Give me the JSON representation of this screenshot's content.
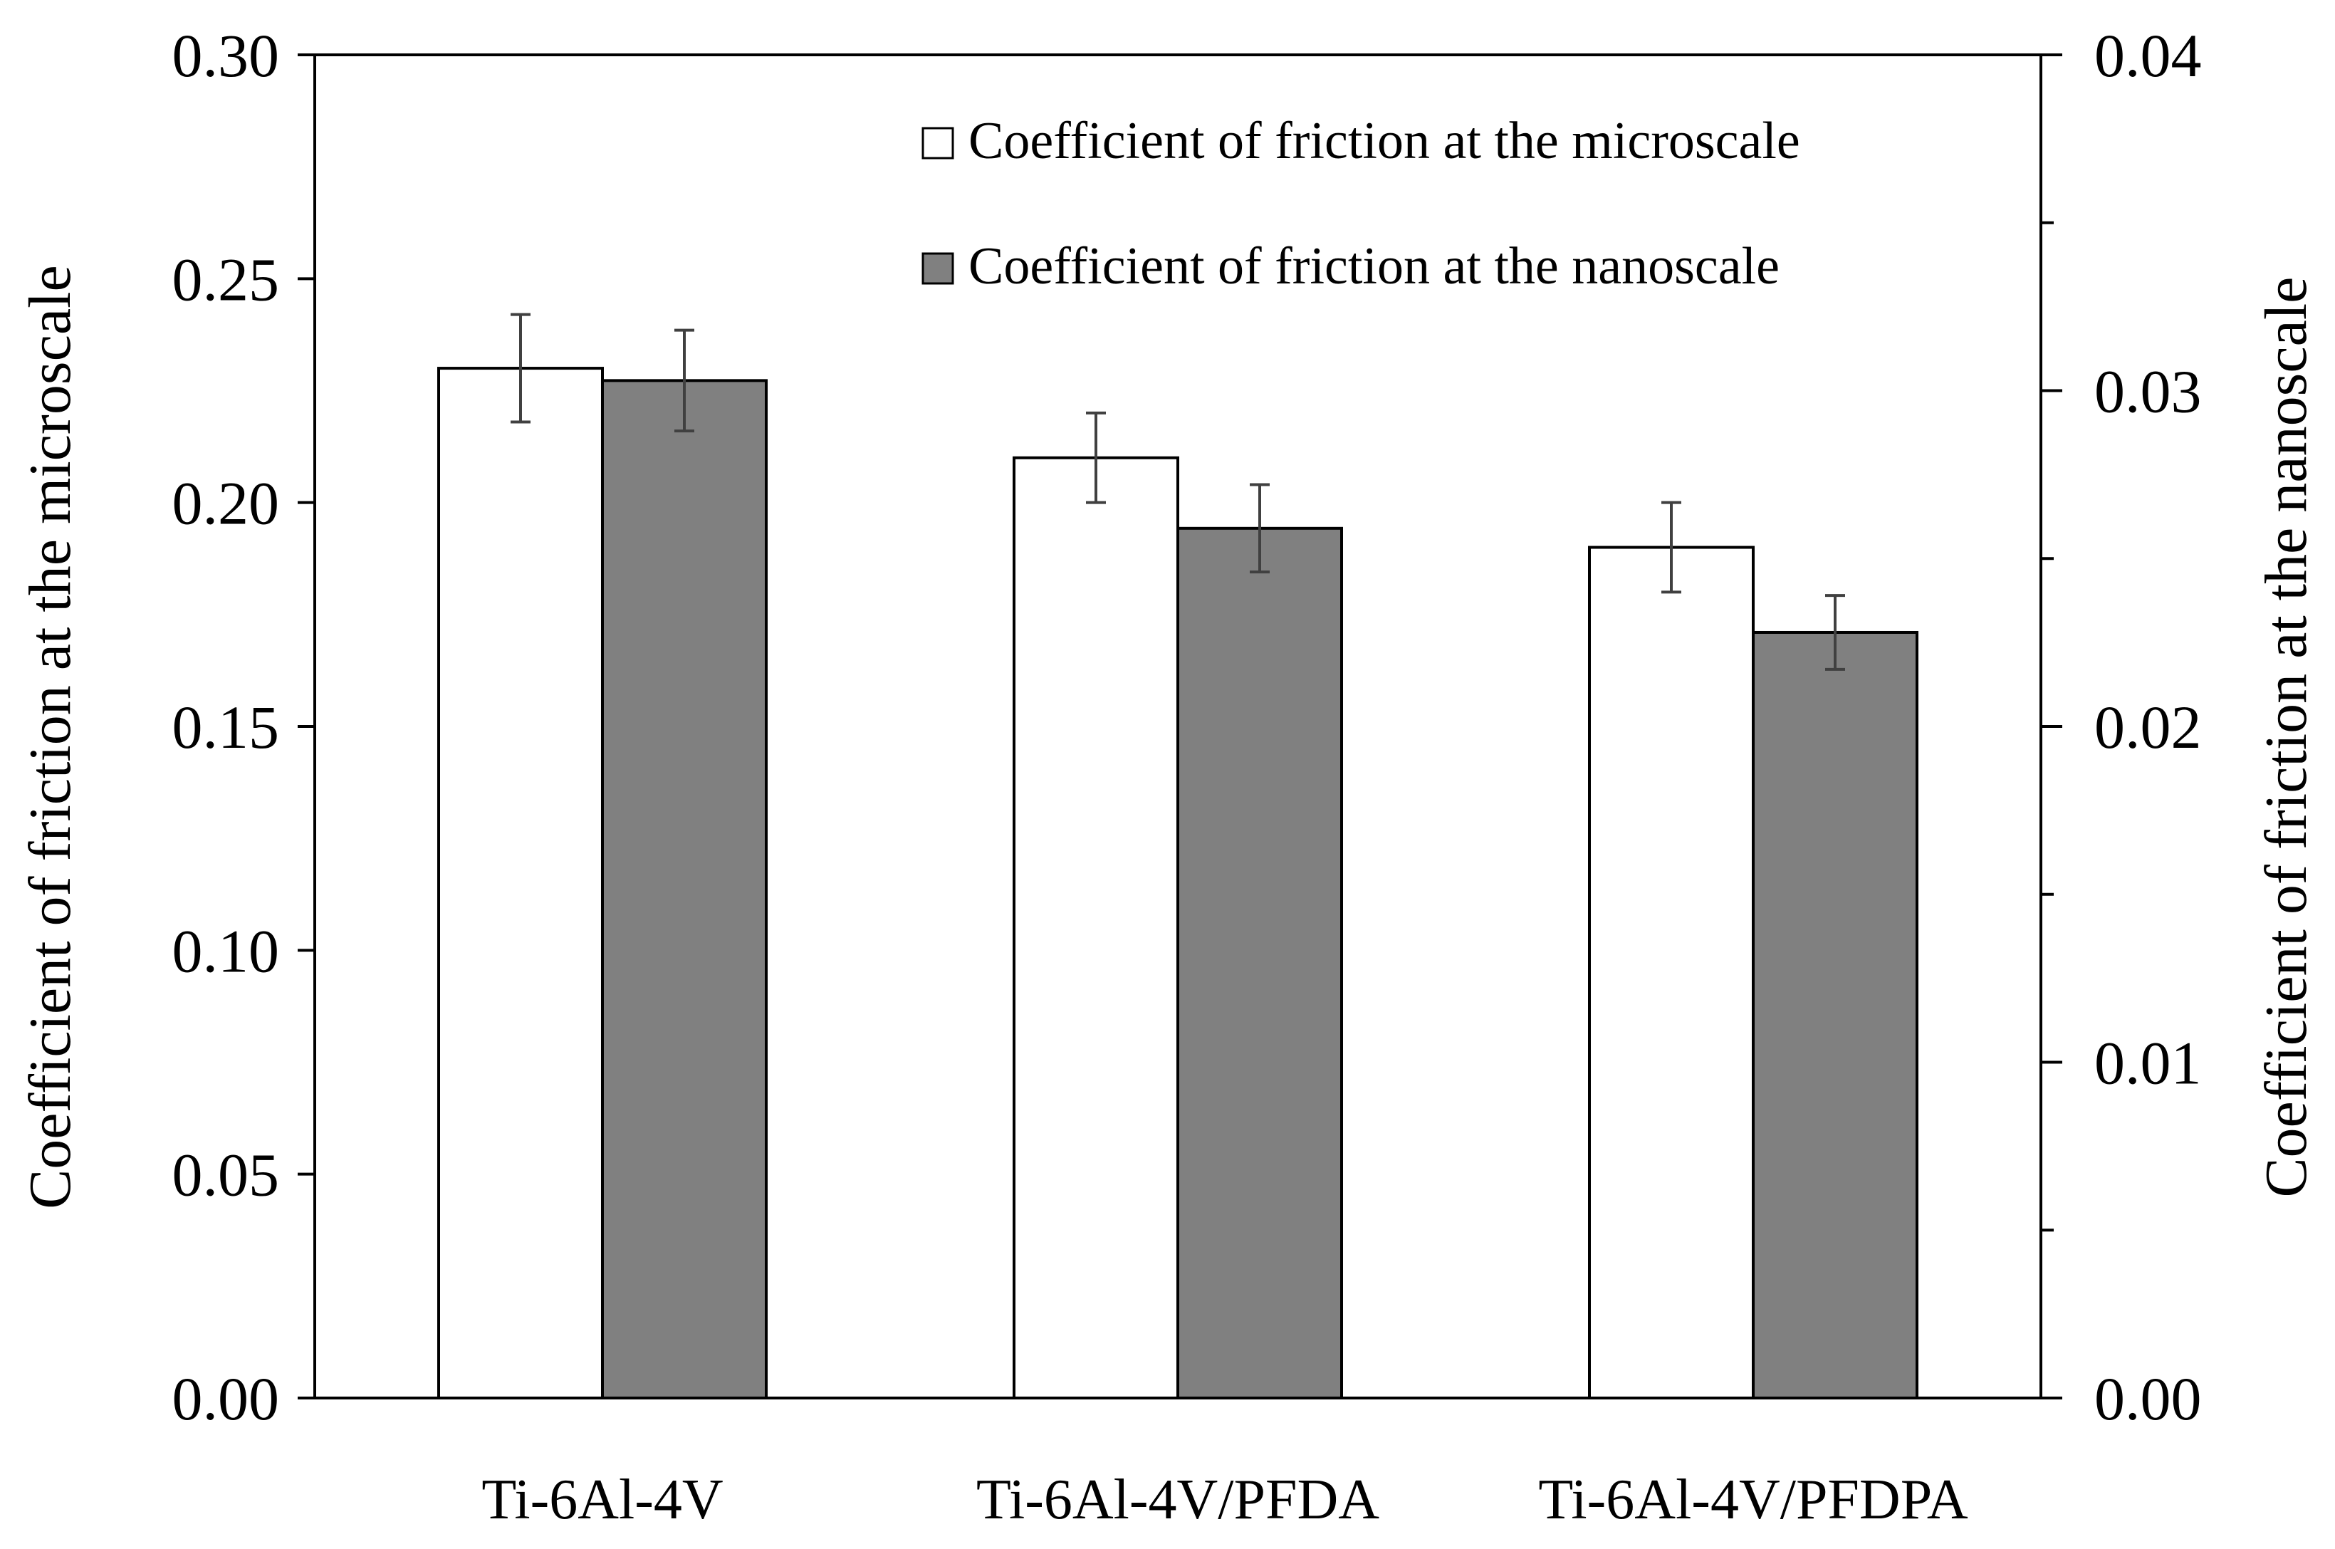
{
  "chart_data": {
    "type": "bar",
    "title": "",
    "categories": [
      "Ti-6Al-4V",
      "Ti-6Al-4V/PFDA",
      "Ti-6Al-4V/PFDPA"
    ],
    "y_left": {
      "label": "Coefficient of friction at the microscale",
      "ylim": [
        0,
        0.3
      ],
      "ticks": [
        "0.00",
        "0.05",
        "0.10",
        "0.15",
        "0.20",
        "0.25",
        "0.30"
      ]
    },
    "y_right": {
      "label": "Coefficient of friction at the nanoscale",
      "ylim": [
        0,
        0.04
      ],
      "ticks": [
        "0.00",
        "0.01",
        "0.02",
        "0.03",
        "0.04"
      ]
    },
    "series": [
      {
        "name": "Coefficient of friction at the microscale",
        "axis": "left",
        "color": "#ffffff",
        "values": [
          0.23,
          0.21,
          0.19
        ],
        "errors": [
          0.012,
          0.01,
          0.01
        ]
      },
      {
        "name": "Coefficient of friction at the nanoscale",
        "axis": "right",
        "color": "#808080",
        "values": [
          0.0303,
          0.0259,
          0.0228
        ],
        "errors": [
          0.0015,
          0.0013,
          0.0011
        ]
      }
    ],
    "legend_position": "top-right",
    "grid": false
  }
}
